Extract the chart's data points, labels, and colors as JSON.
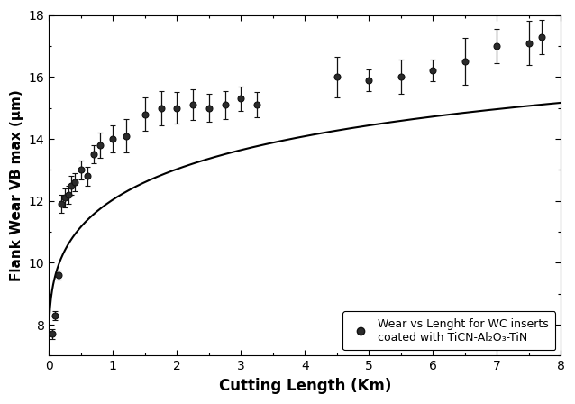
{
  "x_data": [
    0.05,
    0.1,
    0.15,
    0.2,
    0.25,
    0.3,
    0.35,
    0.4,
    0.5,
    0.6,
    0.7,
    0.8,
    1.0,
    1.2,
    1.5,
    1.75,
    2.0,
    2.25,
    2.5,
    2.75,
    3.0,
    3.25,
    4.5,
    5.0,
    5.5,
    6.0,
    6.5,
    7.0,
    7.5,
    7.7
  ],
  "y_data": [
    7.7,
    8.3,
    9.6,
    11.9,
    12.1,
    12.2,
    12.5,
    12.6,
    13.0,
    12.8,
    13.5,
    13.8,
    14.0,
    14.1,
    14.8,
    15.0,
    15.0,
    15.1,
    15.0,
    15.1,
    15.3,
    15.1,
    16.0,
    15.9,
    16.0,
    16.2,
    16.5,
    17.0,
    17.1,
    17.3
  ],
  "y_err": [
    0.15,
    0.15,
    0.15,
    0.3,
    0.3,
    0.3,
    0.3,
    0.3,
    0.3,
    0.3,
    0.3,
    0.4,
    0.45,
    0.55,
    0.55,
    0.55,
    0.5,
    0.5,
    0.45,
    0.45,
    0.4,
    0.4,
    0.65,
    0.35,
    0.55,
    0.35,
    0.75,
    0.55,
    0.7,
    0.55
  ],
  "xlim": [
    0,
    8
  ],
  "ylim": [
    7,
    18
  ],
  "xticks": [
    0,
    1,
    2,
    3,
    4,
    5,
    6,
    7,
    8
  ],
  "yticks": [
    8,
    10,
    12,
    14,
    16,
    18
  ],
  "xlabel": "Cutting Length (Km)",
  "ylabel": "Flank Wear VB max (μm)",
  "legend_text_line1": "Wear vs Lenght for WC inserts",
  "legend_text_line2": "coated with TiCN-Al₂O₃-TiN",
  "marker_color": "#2b2b2b",
  "line_color": "#000000",
  "background_color": "#ffffff",
  "fit_A": 18.5,
  "fit_B": 11.2,
  "fit_C": 0.55,
  "fit_alpha": 0.38
}
